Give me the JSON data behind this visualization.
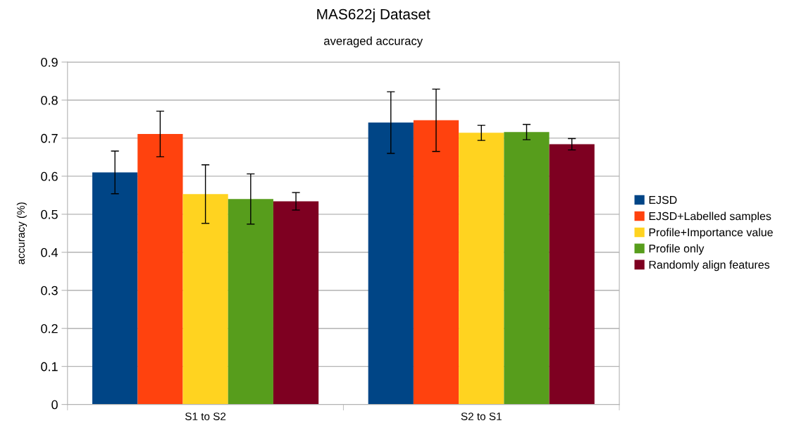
{
  "chart_data": {
    "type": "bar",
    "title": "MAS622j Dataset",
    "subtitle": "averaged accuracy",
    "ylabel": "accuracy (%)",
    "categories": [
      "S1 to S2",
      "S2 to S1"
    ],
    "series": [
      {
        "name": "EJSD",
        "color": "#004586",
        "values": [
          0.61,
          0.741
        ],
        "errors": [
          0.056,
          0.081
        ]
      },
      {
        "name": "EJSD+Labelled samples",
        "color": "#ff420e",
        "values": [
          0.711,
          0.747
        ],
        "errors": [
          0.06,
          0.082
        ]
      },
      {
        "name": "Profile+Importance value",
        "color": "#ffd320",
        "values": [
          0.553,
          0.714
        ],
        "errors": [
          0.077,
          0.02
        ]
      },
      {
        "name": "Profile only",
        "color": "#579d1c",
        "values": [
          0.54,
          0.716
        ],
        "errors": [
          0.066,
          0.02
        ]
      },
      {
        "name": "Randomly align features",
        "color": "#7e0021",
        "values": [
          0.534,
          0.684
        ],
        "errors": [
          0.023,
          0.015
        ]
      }
    ],
    "ylim": [
      0,
      0.9
    ],
    "yticks": [
      0,
      0.1,
      0.2,
      0.3,
      0.4,
      0.5,
      0.6,
      0.7,
      0.8,
      0.9
    ],
    "grid": "y",
    "legend": "right"
  }
}
